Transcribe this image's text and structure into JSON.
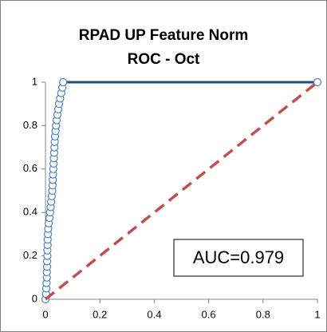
{
  "chart_data": {
    "type": "line",
    "title": "RPAD UP Feature Norm",
    "subtitle": "ROC - Oct",
    "annotation": "AUC=0.979",
    "series": [
      {
        "color": "#1f4e79",
        "marker_color": "#4f81bd",
        "markers": true,
        "dash": false,
        "x": [
          0,
          0.002,
          0.003,
          0.004,
          0.005,
          0.005,
          0.006,
          0.006,
          0.007,
          0.007,
          0.008,
          0.008,
          0.009,
          0.01,
          0.012,
          0.015,
          0.017,
          0.019,
          0.021,
          0.023,
          0.025,
          0.026,
          0.027,
          0.028,
          0.029,
          0.03,
          0.031,
          0.032,
          0.033,
          0.034,
          0.035,
          0.037,
          0.039,
          0.041,
          0.044,
          0.047,
          0.05,
          0.054,
          0.058,
          0.062,
          0.065,
          1
        ],
        "values": [
          0,
          0.025,
          0.05,
          0.075,
          0.1,
          0.125,
          0.15,
          0.175,
          0.2,
          0.225,
          0.25,
          0.275,
          0.3,
          0.325,
          0.35,
          0.375,
          0.4,
          0.425,
          0.45,
          0.475,
          0.5,
          0.525,
          0.55,
          0.575,
          0.6,
          0.625,
          0.65,
          0.675,
          0.7,
          0.725,
          0.75,
          0.775,
          0.8,
          0.825,
          0.85,
          0.875,
          0.9,
          0.925,
          0.95,
          0.975,
          1,
          1
        ]
      },
      {
        "color": "#c0504d",
        "markers": false,
        "dash": true,
        "x": [
          0,
          1
        ],
        "values": [
          0,
          1
        ]
      }
    ],
    "xlim": [
      0,
      1
    ],
    "xticks": [
      0,
      0.2,
      0.4,
      0.6,
      0.8,
      1
    ],
    "ylim": [
      0,
      1
    ],
    "yticks": [
      0,
      0.2,
      0.4,
      0.6,
      0.8,
      1
    ],
    "grid": false
  }
}
